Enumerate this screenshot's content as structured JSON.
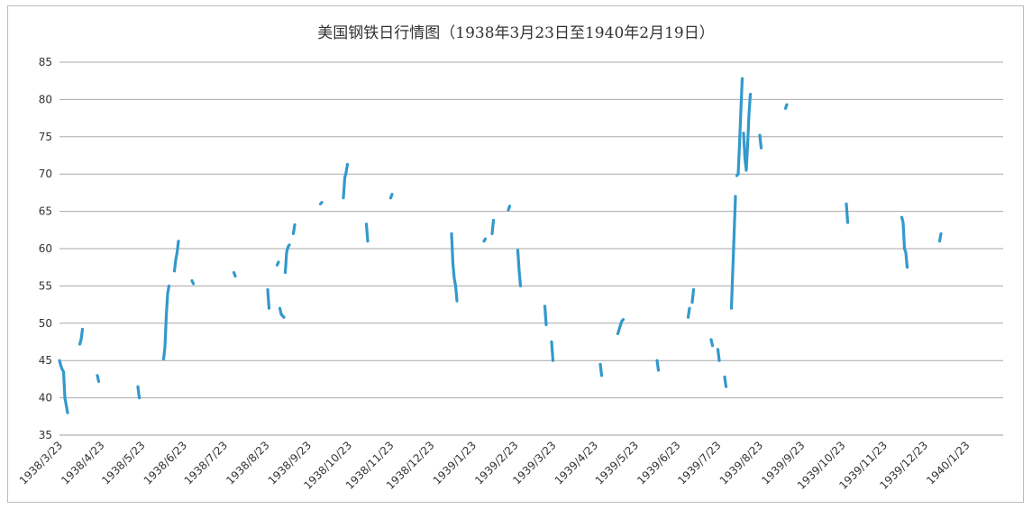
{
  "chart_data": {
    "type": "line",
    "title": "美国钢铁日行情图（1938年3月23日至1940年2月19日）",
    "xlabel": "",
    "ylabel": "",
    "ylim": [
      35,
      85
    ],
    "yticks": [
      "35",
      "40",
      "45",
      "50",
      "55",
      "60",
      "65",
      "70",
      "75",
      "80",
      "85"
    ],
    "grid": true,
    "legend": "none",
    "series_color": "#3399cc",
    "x_ticks": [
      "1938/3/23",
      "1938/4/23",
      "1938/5/23",
      "1938/6/23",
      "1938/7/23",
      "1938/8/23",
      "1938/9/23",
      "1938/10/23",
      "1938/11/23",
      "1938/12/23",
      "1939/1/23",
      "1939/2/23",
      "1939/3/23",
      "1939/4/23",
      "1939/5/23",
      "1939/6/23",
      "1939/7/23",
      "1939/8/23",
      "1939/9/23",
      "1939/10/23",
      "1939/11/23",
      "1939/12/23",
      "1940/1/23"
    ],
    "segments": [
      [
        [
          "1938-03-23",
          45.0
        ],
        [
          "1938-03-24",
          44.3
        ],
        [
          "1938-03-25",
          43.8
        ],
        [
          "1938-03-26",
          43.5
        ],
        [
          "1938-03-27",
          40.0
        ],
        [
          "1938-03-28",
          39.0
        ],
        [
          "1938-03-29",
          38.0
        ]
      ],
      [
        [
          "1938-04-07",
          47.2
        ],
        [
          "1938-04-08",
          47.8
        ],
        [
          "1938-04-09",
          49.2
        ]
      ],
      [
        [
          "1938-04-20",
          43.0
        ],
        [
          "1938-04-21",
          42.2
        ]
      ],
      [
        [
          "1938-05-20",
          41.5
        ],
        [
          "1938-05-21",
          40.0
        ]
      ],
      [
        [
          "1938-06-08",
          45.2
        ],
        [
          "1938-06-09",
          46.8
        ],
        [
          "1938-06-10",
          51.0
        ],
        [
          "1938-06-11",
          54.0
        ],
        [
          "1938-06-12",
          55.0
        ]
      ],
      [
        [
          "1938-06-16",
          57.0
        ],
        [
          "1938-06-17",
          58.5
        ],
        [
          "1938-06-18",
          59.5
        ],
        [
          "1938-06-19",
          61.0
        ]
      ],
      [
        [
          "1938-06-29",
          55.7
        ],
        [
          "1938-06-30",
          55.3
        ]
      ],
      [
        [
          "1938-07-30",
          56.8
        ],
        [
          "1938-07-31",
          56.3
        ]
      ],
      [
        [
          "1938-08-24",
          54.5
        ],
        [
          "1938-08-25",
          52.0
        ]
      ],
      [
        [
          "1938-08-31",
          57.8
        ],
        [
          "1938-09-01",
          58.2
        ]
      ],
      [
        [
          "1938-09-02",
          52.0
        ],
        [
          "1938-09-03",
          51.2
        ],
        [
          "1938-09-04",
          51.0
        ],
        [
          "1938-09-05",
          50.8
        ]
      ],
      [
        [
          "1938-09-06",
          56.8
        ],
        [
          "1938-09-07",
          59.5
        ],
        [
          "1938-09-08",
          60.2
        ],
        [
          "1938-09-09",
          60.5
        ]
      ],
      [
        [
          "1938-09-12",
          62.0
        ],
        [
          "1938-09-13",
          63.2
        ]
      ],
      [
        [
          "1938-10-02",
          66.0
        ],
        [
          "1938-10-03",
          66.2
        ]
      ],
      [
        [
          "1938-10-19",
          66.8
        ],
        [
          "1938-10-20",
          69.5
        ],
        [
          "1938-10-21",
          70.2
        ],
        [
          "1938-10-22",
          71.3
        ]
      ],
      [
        [
          "1938-11-05",
          63.3
        ],
        [
          "1938-11-06",
          61.0
        ]
      ],
      [
        [
          "1938-11-23",
          66.8
        ],
        [
          "1938-11-24",
          67.3
        ]
      ],
      [
        [
          "1939-01-07",
          62.0
        ],
        [
          "1939-01-08",
          58.0
        ],
        [
          "1939-01-09",
          56.0
        ],
        [
          "1939-01-10",
          55.0
        ],
        [
          "1939-01-11",
          53.0
        ]
      ],
      [
        [
          "1939-01-31",
          61.0
        ],
        [
          "1939-02-01",
          61.3
        ]
      ],
      [
        [
          "1939-02-06",
          62.0
        ],
        [
          "1939-02-07",
          63.8
        ]
      ],
      [
        [
          "1939-02-18",
          65.2
        ],
        [
          "1939-02-19",
          65.7
        ]
      ],
      [
        [
          "1939-02-25",
          59.8
        ],
        [
          "1939-02-26",
          57.0
        ],
        [
          "1939-02-27",
          55.0
        ]
      ],
      [
        [
          "1939-03-17",
          52.3
        ],
        [
          "1939-03-18",
          49.8
        ]
      ],
      [
        [
          "1939-03-22",
          47.5
        ],
        [
          "1939-03-23",
          45.0
        ]
      ],
      [
        [
          "1939-04-27",
          44.5
        ],
        [
          "1939-04-28",
          43.0
        ]
      ],
      [
        [
          "1939-05-10",
          48.6
        ],
        [
          "1939-05-11",
          49.2
        ],
        [
          "1939-05-12",
          49.8
        ],
        [
          "1939-05-13",
          50.3
        ],
        [
          "1939-05-14",
          50.5
        ]
      ],
      [
        [
          "1939-06-08",
          45.0
        ],
        [
          "1939-06-09",
          43.7
        ]
      ],
      [
        [
          "1939-07-01",
          50.8
        ],
        [
          "1939-07-02",
          52.0
        ]
      ],
      [
        [
          "1939-07-04",
          52.8
        ],
        [
          "1939-07-05",
          54.5
        ]
      ],
      [
        [
          "1939-07-18",
          47.8
        ],
        [
          "1939-07-19",
          47.0
        ]
      ],
      [
        [
          "1939-07-23",
          46.5
        ],
        [
          "1939-07-24",
          45.0
        ]
      ],
      [
        [
          "1939-07-28",
          42.8
        ],
        [
          "1939-07-29",
          41.5
        ]
      ],
      [
        [
          "1939-08-02",
          52.0
        ],
        [
          "1939-08-03",
          57.0
        ],
        [
          "1939-08-04",
          62.0
        ],
        [
          "1939-08-05",
          67.0
        ]
      ],
      [
        [
          "1939-08-06",
          69.8
        ],
        [
          "1939-08-07",
          70.0
        ]
      ],
      [
        [
          "1939-08-07",
          70.0
        ],
        [
          "1939-08-08",
          74.0
        ],
        [
          "1939-08-09",
          78.5
        ],
        [
          "1939-08-10",
          82.8
        ]
      ],
      [
        [
          "1939-08-11",
          75.5
        ],
        [
          "1939-08-12",
          72.0
        ],
        [
          "1939-08-13",
          70.5
        ],
        [
          "1939-08-14",
          74.0
        ]
      ],
      [
        [
          "1939-08-14",
          74.0
        ],
        [
          "1939-08-15",
          78.0
        ],
        [
          "1939-08-16",
          80.7
        ]
      ],
      [
        [
          "1939-08-23",
          75.2
        ],
        [
          "1939-08-24",
          73.5
        ]
      ],
      [
        [
          "1939-09-11",
          78.8
        ],
        [
          "1939-09-12",
          79.3
        ]
      ],
      [
        [
          "1939-10-26",
          66.0
        ],
        [
          "1939-10-27",
          63.5
        ]
      ],
      [
        [
          "1939-12-06",
          64.2
        ],
        [
          "1939-12-07",
          63.5
        ],
        [
          "1939-12-08",
          60.0
        ],
        [
          "1939-12-09",
          59.5
        ],
        [
          "1939-12-10",
          57.5
        ]
      ],
      [
        [
          "1940-01-03",
          61.0
        ],
        [
          "1940-01-04",
          62.0
        ]
      ]
    ]
  }
}
